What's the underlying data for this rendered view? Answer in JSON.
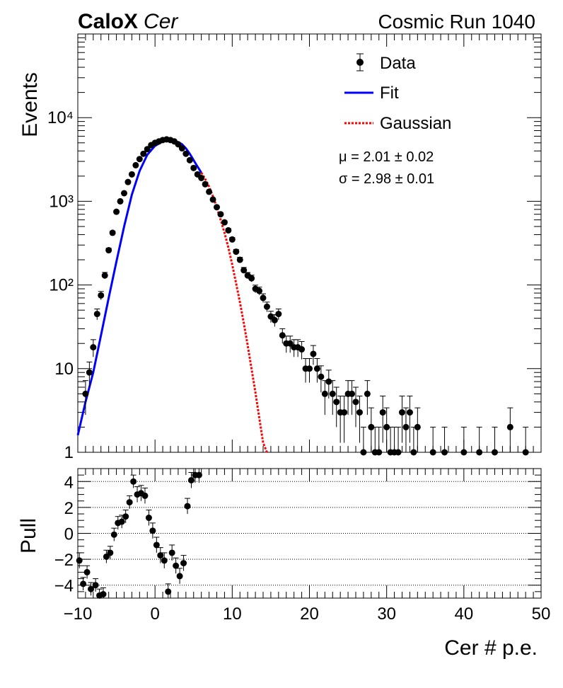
{
  "header": {
    "brand_bold": "CaloX",
    "brand_italic": "Cer",
    "run_label": "Cosmic Run 1040"
  },
  "legend": {
    "data_label": "Data",
    "fit_label": "Fit",
    "gauss_label": "Gaussian"
  },
  "fit_params": {
    "mu_text": "μ = 2.01 ± 0.02",
    "sigma_text": "σ = 2.98 ± 0.01"
  },
  "colors": {
    "data": "#000000",
    "fit": "#0000ff",
    "gaussian": "#ff0000"
  },
  "chart_data": [
    {
      "type": "scatter",
      "scale": "log",
      "xlim": [
        -10,
        50
      ],
      "ylim": [
        1,
        100000
      ],
      "ylabel": "Events",
      "y_ticks": [
        1,
        10,
        100,
        1000,
        10000
      ],
      "y_tick_labels": [
        "1",
        "10",
        "10²",
        "10³",
        "10⁴"
      ],
      "series": [
        {
          "name": "Data",
          "x": [
            -9.0,
            -8.5,
            -8.0,
            -7.5,
            -7.0,
            -6.5,
            -6.0,
            -5.5,
            -5.0,
            -4.5,
            -4.0,
            -3.5,
            -3.0,
            -2.5,
            -2.0,
            -1.5,
            -1.0,
            -0.5,
            0.0,
            0.5,
            1.0,
            1.5,
            2.0,
            2.5,
            3.0,
            3.5,
            4.0,
            4.5,
            5.0,
            5.5,
            6.0,
            6.5,
            7.0,
            7.5,
            8.0,
            8.5,
            9.0,
            9.5,
            10.0,
            10.5,
            11.0,
            11.5,
            12.0,
            12.5,
            13.0,
            13.5,
            14.0,
            14.5,
            15.0,
            15.5,
            16.0,
            16.5,
            17.0,
            17.5,
            18.0,
            18.5,
            19.0,
            19.5,
            20.0,
            20.5,
            21.0,
            21.5,
            22.0,
            22.5,
            23.0,
            23.5,
            24.0,
            24.5,
            25.0,
            25.5,
            26.0,
            26.5,
            27.0,
            27.5,
            28.0,
            28.5,
            29.0,
            29.5,
            30.0,
            30.5,
            31.0,
            31.5,
            32.0,
            32.5,
            33.0,
            33.5,
            34.0,
            36.0,
            37.5,
            40.0,
            42.0,
            44.0,
            46.0,
            48.0
          ],
          "y": [
            5,
            9,
            18,
            45,
            75,
            130,
            260,
            420,
            750,
            1000,
            1250,
            1700,
            2100,
            2700,
            3200,
            3700,
            4200,
            4700,
            5000,
            5200,
            5400,
            5500,
            5400,
            5200,
            4800,
            4300,
            3700,
            3100,
            2500,
            2100,
            1900,
            1600,
            1300,
            1050,
            850,
            700,
            560,
            450,
            350,
            250,
            200,
            150,
            130,
            120,
            90,
            85,
            70,
            55,
            42,
            38,
            45,
            25,
            20,
            20,
            18,
            18,
            17,
            10,
            10,
            15,
            10,
            8,
            5,
            7,
            5,
            4,
            3,
            3,
            5,
            5,
            4,
            3,
            1,
            5,
            2,
            1,
            1,
            3,
            2,
            1,
            1,
            1,
            3,
            2,
            3,
            1,
            2,
            1,
            1,
            1,
            1,
            1,
            2,
            1
          ],
          "yerr": [
            2.2,
            3,
            4.2,
            6.7,
            8.7,
            11.4,
            16,
            20.5,
            27,
            32,
            35,
            41,
            46,
            52,
            57,
            61,
            65,
            69,
            71,
            72,
            73,
            74,
            73,
            72,
            69,
            66,
            61,
            56,
            50,
            46,
            44,
            40,
            36,
            32,
            29,
            26,
            24,
            21,
            19,
            16,
            14,
            12,
            11,
            11,
            9.5,
            9.2,
            8.4,
            7.4,
            6.5,
            6.2,
            6.7,
            5,
            4.5,
            4.5,
            4.2,
            4.2,
            4.1,
            3.2,
            3.2,
            3.9,
            3.2,
            2.8,
            2.2,
            2.6,
            2.2,
            2,
            1.7,
            1.7,
            2.2,
            2.2,
            2,
            1.7,
            1,
            2.2,
            1.4,
            1,
            1,
            1.7,
            1.4,
            1,
            1,
            1,
            1.7,
            1.4,
            1.7,
            1,
            1.4,
            1,
            1,
            1,
            1,
            1,
            1.4,
            1
          ]
        },
        {
          "name": "Fit",
          "x": [
            -10,
            -9,
            -8,
            -7,
            -6,
            -5,
            -4,
            -3,
            -2,
            -1,
            0,
            1,
            1.5,
            2,
            2.5,
            3,
            3.5,
            4,
            4.5,
            5,
            5.5,
            6
          ],
          "y": [
            1.6,
            4,
            9,
            25,
            70,
            190,
            500,
            1200,
            2300,
            3600,
            4600,
            5200,
            5400,
            5400,
            5300,
            5100,
            4800,
            4300,
            3700,
            3100,
            2600,
            2200
          ]
        },
        {
          "name": "Gaussian",
          "x": [
            6,
            6.5,
            7,
            7.5,
            8,
            8.5,
            9,
            9.5,
            10,
            10.5,
            11,
            11.5,
            12,
            12.5,
            13,
            13.5,
            14,
            14.5
          ],
          "y": [
            2200,
            1850,
            1500,
            1150,
            850,
            600,
            420,
            280,
            175,
            105,
            62,
            35,
            19,
            10,
            5.2,
            2.6,
            1.3,
            0.6
          ]
        }
      ]
    },
    {
      "type": "scatter",
      "xlim": [
        -10,
        50
      ],
      "ylim": [
        -5,
        5
      ],
      "xlabel": "Cer # p.e.",
      "ylabel": "Pull",
      "x_ticks": [
        -10,
        0,
        10,
        20,
        30,
        40,
        50
      ],
      "y_ticks": [
        -4,
        -2,
        0,
        2,
        4
      ],
      "series": [
        {
          "name": "Pull",
          "x": [
            -9.8,
            -9.3,
            -8.8,
            -8.3,
            -7.7,
            -7.2,
            -6.7,
            -6.3,
            -5.8,
            -5.3,
            -4.8,
            -4.3,
            -3.8,
            -3.3,
            -2.8,
            -2.3,
            -1.8,
            -1.3,
            -0.8,
            -0.3,
            0.2,
            0.7,
            1.2,
            1.7,
            2.2,
            2.7,
            3.2,
            3.7,
            4.2,
            4.7,
            5.2,
            5.7
          ],
          "y": [
            -2.1,
            -3.9,
            -3,
            -4.3,
            -4,
            -4.8,
            -4.7,
            -1.8,
            -1.5,
            -0.1,
            0.8,
            0.9,
            1.3,
            2.4,
            4,
            3,
            3.1,
            2.9,
            1.2,
            0.2,
            -0.9,
            -1.7,
            -2.1,
            -4.5,
            -1.5,
            -2.5,
            -3.3,
            -2.3,
            2.1,
            4.1,
            4.5,
            4.5
          ],
          "yerr": [
            0.6,
            0.5,
            0.5,
            0.5,
            0.5,
            0.5,
            0.5,
            0.5,
            0.5,
            0.5,
            0.5,
            0.5,
            0.5,
            0.5,
            0.5,
            0.6,
            0.6,
            0.6,
            0.6,
            0.6,
            0.6,
            0.6,
            0.6,
            0.6,
            0.6,
            0.6,
            0.6,
            0.6,
            0.6,
            0.6,
            0.6,
            0.6
          ]
        }
      ]
    }
  ]
}
